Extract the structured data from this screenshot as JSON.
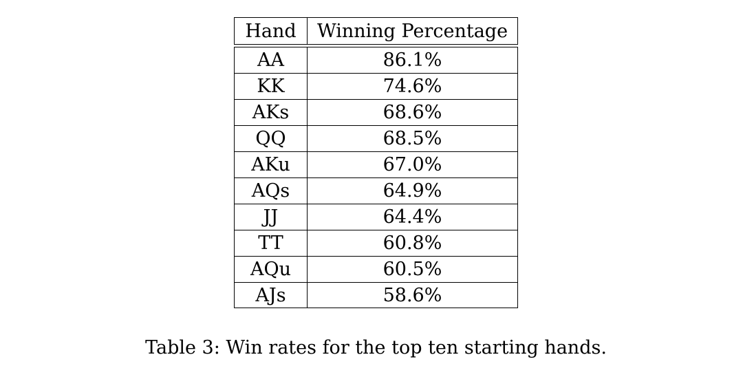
{
  "table": {
    "headers": [
      "Hand",
      "Winning Percentage"
    ],
    "rows": [
      {
        "hand": "AA",
        "pct": "86.1%"
      },
      {
        "hand": "KK",
        "pct": "74.6%"
      },
      {
        "hand": "AKs",
        "pct": "68.6%"
      },
      {
        "hand": "QQ",
        "pct": "68.5%"
      },
      {
        "hand": "AKu",
        "pct": "67.0%"
      },
      {
        "hand": "AQs",
        "pct": "64.9%"
      },
      {
        "hand": "JJ",
        "pct": "64.4%"
      },
      {
        "hand": "TT",
        "pct": "60.8%"
      },
      {
        "hand": "AQu",
        "pct": "60.5%"
      },
      {
        "hand": "AJs",
        "pct": "58.6%"
      }
    ]
  },
  "caption": "Table 3: Win rates for the top ten starting hands.",
  "chart_data": {
    "type": "table",
    "columns": [
      "Hand",
      "Winning Percentage"
    ],
    "rows": [
      [
        "AA",
        "86.1%"
      ],
      [
        "KK",
        "74.6%"
      ],
      [
        "AKs",
        "68.6%"
      ],
      [
        "QQ",
        "68.5%"
      ],
      [
        "AKu",
        "67.0%"
      ],
      [
        "AQs",
        "64.9%"
      ],
      [
        "JJ",
        "64.4%"
      ],
      [
        "TT",
        "60.8%"
      ],
      [
        "AQu",
        "60.5%"
      ],
      [
        "AJs",
        "58.6%"
      ]
    ],
    "title": "Table 3: Win rates for the top ten starting hands."
  }
}
